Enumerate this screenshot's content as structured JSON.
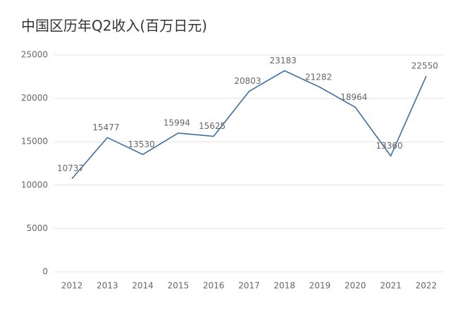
{
  "chart_data": {
    "type": "line",
    "title": "中国区历年Q2收入(百万日元)",
    "categories": [
      "2012",
      "2013",
      "2014",
      "2015",
      "2016",
      "2017",
      "2018",
      "2019",
      "2020",
      "2021",
      "2022"
    ],
    "values": [
      10737,
      15477,
      13530,
      15994,
      15625,
      20803,
      23183,
      21282,
      18964,
      13360,
      22550
    ],
    "color": "#3d6e9e",
    "ylim": [
      0,
      25000
    ],
    "yticks": [
      0,
      5000,
      10000,
      15000,
      20000,
      25000
    ],
    "grid": true
  }
}
